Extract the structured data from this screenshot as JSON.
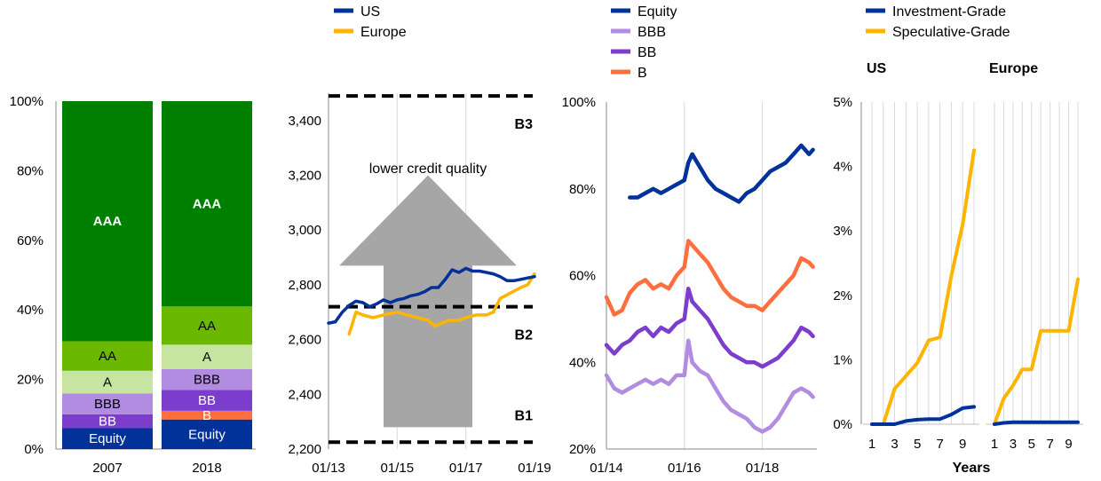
{
  "colors": {
    "navy": "#003299",
    "yellow": "#ffb400",
    "green_dark": "#008000",
    "green_light": "#6bb800",
    "green_pale": "#c6e5a0",
    "lilac": "#b28ce0",
    "purple": "#7c3ccc",
    "orange": "#ff6e3c",
    "grey": "#a6a6a6"
  },
  "chart_data": [
    {
      "type": "bar",
      "stacked": true,
      "categories": [
        "2007",
        "2018"
      ],
      "ylim": [
        0,
        100
      ],
      "yticks": [
        "0%",
        "20%",
        "40%",
        "60%",
        "80%",
        "100%"
      ],
      "series": [
        {
          "name": "Equity",
          "values": [
            6,
            8.5
          ]
        },
        {
          "name": "B",
          "values": [
            0,
            2.5
          ]
        },
        {
          "name": "BB",
          "values": [
            4,
            6
          ]
        },
        {
          "name": "BBB",
          "values": [
            6,
            6
          ]
        },
        {
          "name": "A",
          "values": [
            6.5,
            7
          ]
        },
        {
          "name": "AA",
          "values": [
            8.5,
            11
          ]
        },
        {
          "name": "AAA",
          "values": [
            69,
            59
          ]
        }
      ]
    },
    {
      "type": "line",
      "legend": [
        "US",
        "Europe"
      ],
      "xticks": [
        "01/13",
        "01/15",
        "01/17",
        "01/19"
      ],
      "xlim": [
        2013.0,
        2019.0
      ],
      "ylim": [
        2200,
        3500
      ],
      "yticks": [
        "2,200",
        "2,400",
        "2,600",
        "2,800",
        "3,000",
        "3,200",
        "3,400"
      ],
      "thresholds": [
        {
          "label": "B3",
          "value": 3490
        },
        {
          "label": "B2",
          "value": 2720
        },
        {
          "label": "B1",
          "value": 2225
        }
      ],
      "annotation": "lower credit quality",
      "series": [
        {
          "name": "US",
          "points": [
            [
              2013.0,
              2660
            ],
            [
              2013.2,
              2665
            ],
            [
              2013.4,
              2700
            ],
            [
              2013.6,
              2725
            ],
            [
              2013.8,
              2740
            ],
            [
              2014.0,
              2735
            ],
            [
              2014.2,
              2720
            ],
            [
              2014.4,
              2730
            ],
            [
              2014.6,
              2745
            ],
            [
              2014.8,
              2735
            ],
            [
              2015.0,
              2745
            ],
            [
              2015.2,
              2750
            ],
            [
              2015.4,
              2760
            ],
            [
              2015.6,
              2765
            ],
            [
              2015.8,
              2775
            ],
            [
              2016.0,
              2790
            ],
            [
              2016.2,
              2790
            ],
            [
              2016.4,
              2820
            ],
            [
              2016.6,
              2855
            ],
            [
              2016.8,
              2845
            ],
            [
              2017.0,
              2860
            ],
            [
              2017.2,
              2850
            ],
            [
              2017.4,
              2850
            ],
            [
              2017.6,
              2845
            ],
            [
              2017.8,
              2840
            ],
            [
              2018.0,
              2830
            ],
            [
              2018.2,
              2815
            ],
            [
              2018.4,
              2815
            ],
            [
              2018.6,
              2820
            ],
            [
              2018.8,
              2825
            ],
            [
              2019.0,
              2830
            ]
          ]
        },
        {
          "name": "Europe",
          "points": [
            [
              2013.6,
              2620
            ],
            [
              2013.7,
              2660
            ],
            [
              2013.8,
              2700
            ],
            [
              2014.0,
              2690
            ],
            [
              2014.3,
              2680
            ],
            [
              2014.6,
              2690
            ],
            [
              2015.0,
              2700
            ],
            [
              2015.3,
              2690
            ],
            [
              2015.6,
              2680
            ],
            [
              2015.9,
              2670
            ],
            [
              2016.1,
              2650
            ],
            [
              2016.3,
              2660
            ],
            [
              2016.5,
              2670
            ],
            [
              2016.8,
              2670
            ],
            [
              2017.0,
              2680
            ],
            [
              2017.3,
              2690
            ],
            [
              2017.6,
              2690
            ],
            [
              2017.8,
              2700
            ],
            [
              2018.0,
              2750
            ],
            [
              2018.3,
              2770
            ],
            [
              2018.6,
              2790
            ],
            [
              2018.8,
              2800
            ],
            [
              2019.0,
              2840
            ]
          ]
        }
      ]
    },
    {
      "type": "line",
      "legend": [
        "Equity",
        "BBB",
        "BB",
        "B"
      ],
      "xticks": [
        "01/14",
        "01/16",
        "01/18"
      ],
      "xlim": [
        2014.0,
        2019.4
      ],
      "ylim": [
        20,
        100
      ],
      "yticks": [
        "20%",
        "40%",
        "60%",
        "80%",
        "100%"
      ],
      "series": [
        {
          "name": "Equity",
          "points": [
            [
              2014.6,
              78
            ],
            [
              2014.8,
              78
            ],
            [
              2015.0,
              79
            ],
            [
              2015.2,
              80
            ],
            [
              2015.4,
              79
            ],
            [
              2015.6,
              80
            ],
            [
              2015.8,
              81
            ],
            [
              2016.0,
              82
            ],
            [
              2016.1,
              86
            ],
            [
              2016.2,
              88
            ],
            [
              2016.4,
              85
            ],
            [
              2016.6,
              82
            ],
            [
              2016.8,
              80
            ],
            [
              2017.0,
              79
            ],
            [
              2017.2,
              78
            ],
            [
              2017.4,
              77
            ],
            [
              2017.6,
              79
            ],
            [
              2017.8,
              80
            ],
            [
              2018.0,
              82
            ],
            [
              2018.2,
              84
            ],
            [
              2018.4,
              85
            ],
            [
              2018.6,
              86
            ],
            [
              2018.8,
              88
            ],
            [
              2019.0,
              90
            ],
            [
              2019.2,
              88
            ],
            [
              2019.3,
              89
            ]
          ]
        },
        {
          "name": "BBB",
          "points": [
            [
              2014.0,
              37
            ],
            [
              2014.2,
              34
            ],
            [
              2014.4,
              33
            ],
            [
              2014.6,
              34
            ],
            [
              2014.8,
              35
            ],
            [
              2015.0,
              36
            ],
            [
              2015.2,
              35
            ],
            [
              2015.4,
              36
            ],
            [
              2015.6,
              35
            ],
            [
              2015.8,
              37
            ],
            [
              2016.0,
              37
            ],
            [
              2016.1,
              45
            ],
            [
              2016.2,
              40
            ],
            [
              2016.4,
              38
            ],
            [
              2016.6,
              37
            ],
            [
              2016.8,
              34
            ],
            [
              2017.0,
              31
            ],
            [
              2017.2,
              29
            ],
            [
              2017.4,
              28
            ],
            [
              2017.6,
              27
            ],
            [
              2017.8,
              25
            ],
            [
              2018.0,
              24
            ],
            [
              2018.2,
              25
            ],
            [
              2018.4,
              27
            ],
            [
              2018.6,
              30
            ],
            [
              2018.8,
              33
            ],
            [
              2019.0,
              34
            ],
            [
              2019.2,
              33
            ],
            [
              2019.3,
              32
            ]
          ]
        },
        {
          "name": "BB",
          "points": [
            [
              2014.0,
              44
            ],
            [
              2014.2,
              42
            ],
            [
              2014.4,
              44
            ],
            [
              2014.6,
              45
            ],
            [
              2014.8,
              47
            ],
            [
              2015.0,
              48
            ],
            [
              2015.2,
              46
            ],
            [
              2015.4,
              48
            ],
            [
              2015.6,
              47
            ],
            [
              2015.8,
              49
            ],
            [
              2016.0,
              50
            ],
            [
              2016.1,
              57
            ],
            [
              2016.2,
              54
            ],
            [
              2016.4,
              52
            ],
            [
              2016.6,
              50
            ],
            [
              2016.8,
              47
            ],
            [
              2017.0,
              44
            ],
            [
              2017.2,
              42
            ],
            [
              2017.4,
              41
            ],
            [
              2017.6,
              40
            ],
            [
              2017.8,
              40
            ],
            [
              2018.0,
              39
            ],
            [
              2018.2,
              40
            ],
            [
              2018.4,
              41
            ],
            [
              2018.6,
              43
            ],
            [
              2018.8,
              45
            ],
            [
              2019.0,
              48
            ],
            [
              2019.2,
              47
            ],
            [
              2019.3,
              46
            ]
          ]
        },
        {
          "name": "B",
          "points": [
            [
              2014.0,
              55
            ],
            [
              2014.2,
              51
            ],
            [
              2014.4,
              52
            ],
            [
              2014.6,
              56
            ],
            [
              2014.8,
              58
            ],
            [
              2015.0,
              59
            ],
            [
              2015.2,
              57
            ],
            [
              2015.4,
              58
            ],
            [
              2015.6,
              57
            ],
            [
              2015.8,
              60
            ],
            [
              2016.0,
              62
            ],
            [
              2016.1,
              68
            ],
            [
              2016.2,
              67
            ],
            [
              2016.4,
              65
            ],
            [
              2016.6,
              63
            ],
            [
              2016.8,
              60
            ],
            [
              2017.0,
              57
            ],
            [
              2017.2,
              55
            ],
            [
              2017.4,
              54
            ],
            [
              2017.6,
              53
            ],
            [
              2017.8,
              53
            ],
            [
              2018.0,
              52
            ],
            [
              2018.2,
              54
            ],
            [
              2018.4,
              56
            ],
            [
              2018.6,
              58
            ],
            [
              2018.8,
              60
            ],
            [
              2019.0,
              64
            ],
            [
              2019.2,
              63
            ],
            [
              2019.3,
              62
            ]
          ]
        }
      ]
    },
    {
      "type": "line",
      "legend": [
        "Investment-Grade",
        "Speculative-Grade"
      ],
      "ylim": [
        0,
        5
      ],
      "yticks": [
        "0%",
        "1%",
        "2%",
        "3%",
        "4%",
        "5%"
      ],
      "xlabel": "Years",
      "xticks": [
        "1",
        "3",
        "5",
        "7",
        "9"
      ],
      "xlim": [
        1,
        10
      ],
      "panels": [
        {
          "title": "US",
          "series": [
            {
              "name": "Investment-Grade",
              "points": [
                [
                  1,
                  0
                ],
                [
                  2,
                  0
                ],
                [
                  3,
                  0
                ],
                [
                  4,
                  0.05
                ],
                [
                  5,
                  0.07
                ],
                [
                  6,
                  0.08
                ],
                [
                  7,
                  0.08
                ],
                [
                  8,
                  0.15
                ],
                [
                  9,
                  0.25
                ],
                [
                  10,
                  0.27
                ]
              ]
            },
            {
              "name": "Speculative-Grade",
              "points": [
                [
                  1,
                  0
                ],
                [
                  2,
                  0
                ],
                [
                  3,
                  0.55
                ],
                [
                  4,
                  0.75
                ],
                [
                  5,
                  0.95
                ],
                [
                  6,
                  1.3
                ],
                [
                  7,
                  1.35
                ],
                [
                  8,
                  2.3
                ],
                [
                  9,
                  3.1
                ],
                [
                  10,
                  4.25
                ]
              ]
            }
          ]
        },
        {
          "title": "Europe",
          "series": [
            {
              "name": "Investment-Grade",
              "points": [
                [
                  1,
                  0
                ],
                [
                  2,
                  0.02
                ],
                [
                  3,
                  0.03
                ],
                [
                  4,
                  0.03
                ],
                [
                  5,
                  0.03
                ],
                [
                  6,
                  0.03
                ],
                [
                  7,
                  0.03
                ],
                [
                  8,
                  0.03
                ],
                [
                  9,
                  0.03
                ],
                [
                  10,
                  0.03
                ]
              ]
            },
            {
              "name": "Speculative-Grade",
              "points": [
                [
                  1,
                  0
                ],
                [
                  2,
                  0.4
                ],
                [
                  3,
                  0.6
                ],
                [
                  4,
                  0.85
                ],
                [
                  5,
                  0.85
                ],
                [
                  6,
                  1.45
                ],
                [
                  7,
                  1.45
                ],
                [
                  8,
                  1.45
                ],
                [
                  9,
                  1.45
                ],
                [
                  10,
                  2.25
                ]
              ]
            }
          ]
        }
      ]
    }
  ]
}
